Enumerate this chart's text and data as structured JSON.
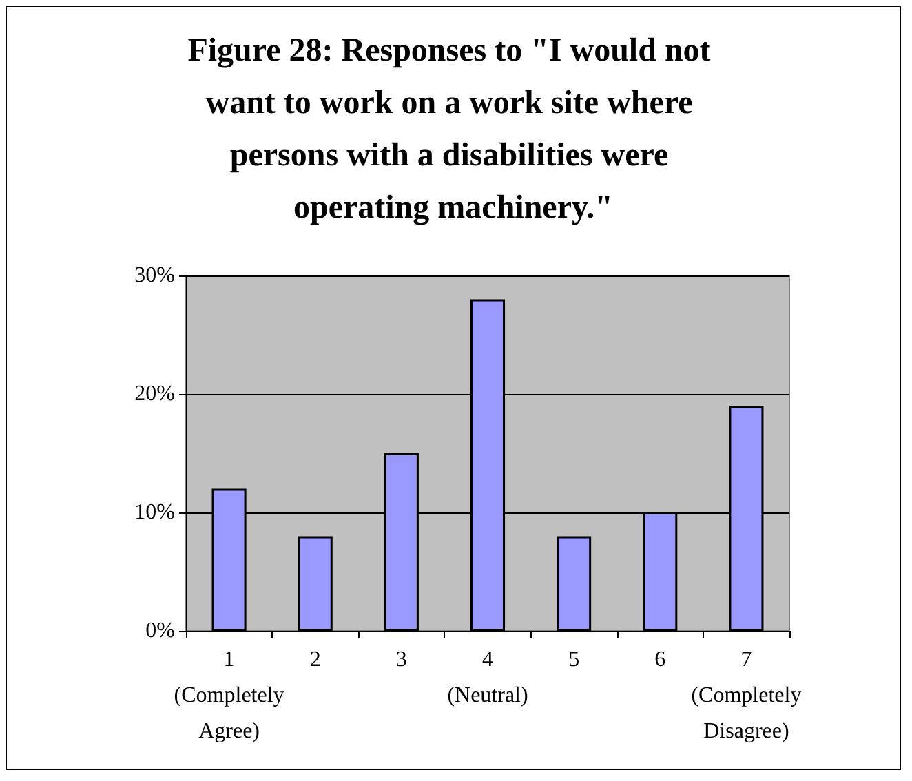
{
  "chart_data": {
    "type": "bar",
    "title": "Figure 28: Responses to \"I would not want to work on a work site where persons with a disabilities were operating machinery.\"",
    "categories": [
      "1\n(Completely\nAgree)",
      "2",
      "3",
      "4\n(Neutral)",
      "5",
      "6",
      "7\n(Completely\nDisagree)"
    ],
    "values": [
      0.12,
      0.08,
      0.15,
      0.28,
      0.08,
      0.1,
      0.19
    ],
    "color": "#9999ff",
    "ylim": [
      0,
      0.3
    ],
    "yticks": [
      {
        "value": 0,
        "label": "0%"
      },
      {
        "value": 0.1,
        "label": "10%"
      },
      {
        "value": 0.2,
        "label": "20%"
      },
      {
        "value": 0.3,
        "label": "30%"
      }
    ],
    "grid": "y"
  }
}
